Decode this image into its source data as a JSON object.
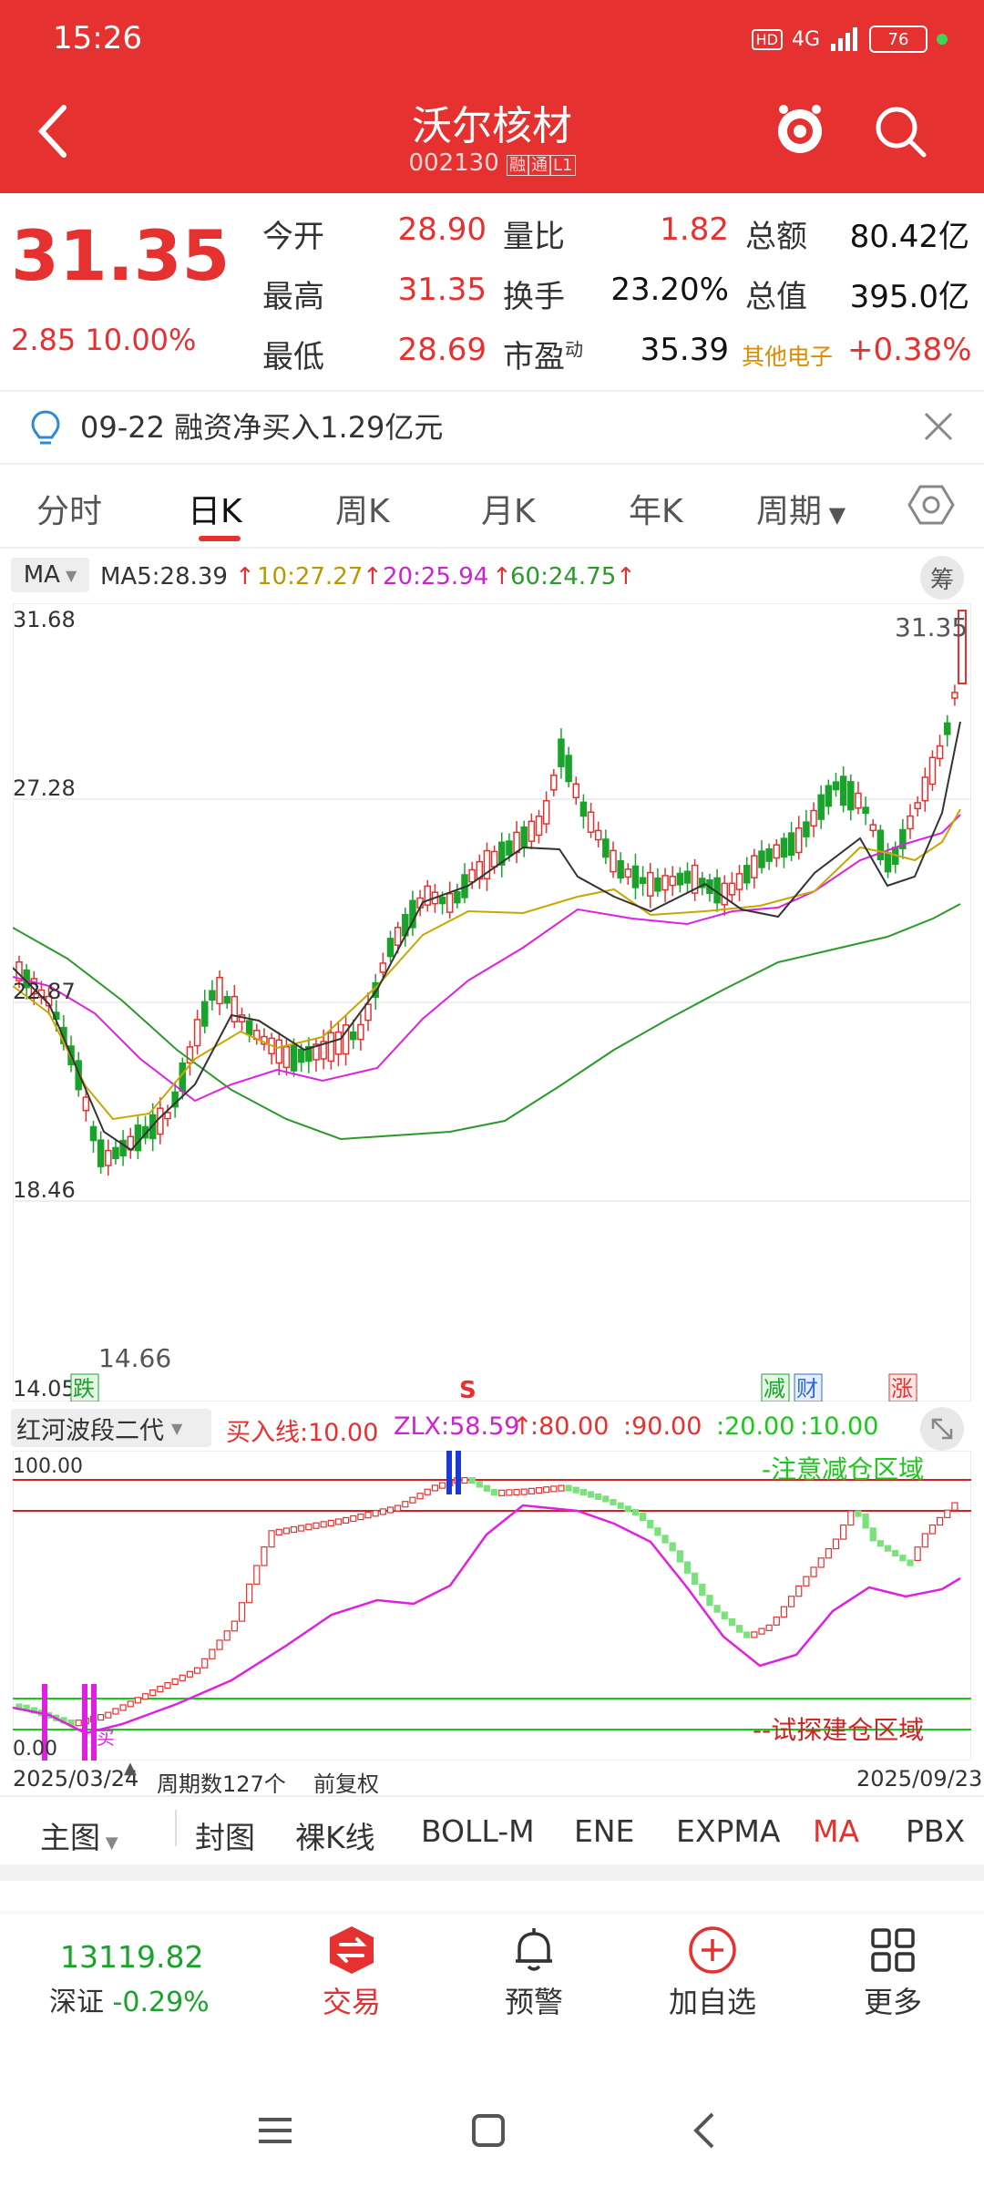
{
  "status": {
    "time": "15:26",
    "signal": "4G",
    "battery": "76"
  },
  "header": {
    "title": "沃尔核材",
    "code": "002130",
    "badges": [
      "融",
      "通",
      "L1"
    ]
  },
  "quote": {
    "price": "31.35",
    "change": "2.85",
    "change_pct": "10.00%",
    "rows": [
      {
        "l1": "今开",
        "v1": "28.90",
        "l2": "量比",
        "v2": "1.82",
        "l3": "总额",
        "v3": "80.42亿"
      },
      {
        "l1": "最高",
        "v1": "31.35",
        "l2": "换手",
        "v2": "23.20%",
        "l3": "总值",
        "v3": "395.0亿"
      },
      {
        "l1": "最低",
        "v1": "28.69",
        "l2": "市盈",
        "l2sup": "动",
        "v2": "35.39",
        "l3": "其他电子",
        "v3": "+0.38%"
      }
    ]
  },
  "notice": {
    "text": "09-22 融资净买入1.29亿元"
  },
  "tabs": [
    "分时",
    "日K",
    "周K",
    "月K",
    "年K",
    "周期"
  ],
  "ma_bar": {
    "select": "MA",
    "ma5": "MA5:28.39",
    "ma10": "10:27.27",
    "ma20": "20:25.94",
    "ma60": "60:24.75",
    "chou": "筹"
  },
  "main_chart": {
    "y_labels": [
      "31.68",
      "27.28",
      "22.87",
      "18.46",
      "14.05"
    ],
    "high_label": "31.35",
    "low_label": "14.66",
    "markers": {
      "die": "跌",
      "s": "S",
      "jian": "减",
      "cai": "财",
      "zhang": "涨"
    }
  },
  "indicator": {
    "name": "红河波段二代",
    "buy_line": "买入线:10.00",
    "zlx": "ZLX:58.59",
    "l80": ":80.00",
    "l90": ":90.00",
    "l20": ":20.00",
    "l10": ":10.00",
    "top_label": "100.00",
    "bottom_label": "0.00",
    "zone_top": "-注意减仓区域",
    "zone_bottom": "--试探建仓区域",
    "mai": "买"
  },
  "chart_footer": {
    "start": "2025/03/24",
    "period": "周期数127个",
    "adj": "前复权",
    "end": "2025/09/23"
  },
  "indicator_tabs": [
    "主图",
    "封图",
    "裸K线",
    "BOLL-M",
    "ENE",
    "EXPMA",
    "MA",
    "PBX"
  ],
  "bottom": {
    "index_value": "13119.82",
    "index_name": "深证",
    "index_change": "-0.29%",
    "trade": "交易",
    "alert": "预警",
    "add": "加自选",
    "more": "更多"
  },
  "colors": {
    "up": "#e5312f",
    "down": "#1aa32b",
    "ma5": "#333333",
    "ma10": "#c8a800",
    "ma20": "#e020e0",
    "ma60": "#2a9a2a"
  },
  "chart_data": {
    "type": "candlestick",
    "ylim": [
      14.05,
      31.68
    ],
    "price_range": {
      "low": 14.66,
      "high": 31.35,
      "last": 31.35
    },
    "ma_latest": {
      "MA5": 28.39,
      "MA10": 27.27,
      "MA20": 25.94,
      "MA60": 24.75
    },
    "indicator_levels": [
      10,
      20,
      80,
      90
    ]
  }
}
